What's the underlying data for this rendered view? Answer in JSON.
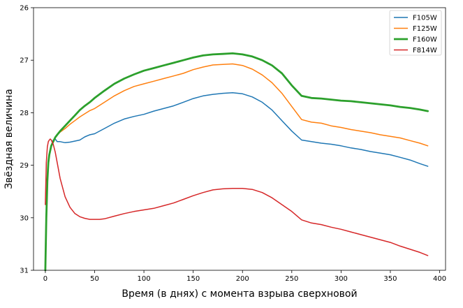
{
  "chart_data": {
    "type": "line",
    "xlabel": "Время (в днях) с момента взрыва сверхновой",
    "ylabel": "Звёздная величина",
    "xlim": [
      -12,
      406
    ],
    "ylim": [
      31,
      26
    ],
    "y_inverted": true,
    "xticks": [
      0,
      50,
      100,
      150,
      200,
      250,
      300,
      350,
      400
    ],
    "yticks": [
      26,
      27,
      28,
      29,
      30,
      31
    ],
    "grid": false,
    "legend_position": "top-right",
    "series": [
      {
        "name": "F105W",
        "color": "#1f77b4",
        "x": [
          0,
          1,
          2,
          3,
          4,
          6,
          8,
          10,
          12,
          15,
          20,
          25,
          30,
          35,
          40,
          45,
          50,
          60,
          70,
          80,
          90,
          100,
          110,
          120,
          130,
          140,
          150,
          160,
          170,
          180,
          190,
          200,
          210,
          220,
          230,
          240,
          250,
          260,
          270,
          280,
          290,
          300,
          310,
          320,
          330,
          340,
          350,
          360,
          370,
          380,
          388
        ],
        "y": [
          31.0,
          30.0,
          29.3,
          28.95,
          28.8,
          28.62,
          28.52,
          28.5,
          28.55,
          28.55,
          28.57,
          28.56,
          28.54,
          28.52,
          28.46,
          28.42,
          28.4,
          28.3,
          28.2,
          28.12,
          28.07,
          28.03,
          27.97,
          27.92,
          27.87,
          27.8,
          27.73,
          27.68,
          27.65,
          27.63,
          27.62,
          27.64,
          27.7,
          27.8,
          27.95,
          28.15,
          28.35,
          28.52,
          28.55,
          28.58,
          28.6,
          28.63,
          28.67,
          28.7,
          28.74,
          28.77,
          28.8,
          28.85,
          28.9,
          28.97,
          29.02
        ]
      },
      {
        "name": "F125W",
        "color": "#ff7f0e",
        "x": [
          0,
          1,
          2,
          3,
          4,
          6,
          8,
          10,
          12,
          15,
          20,
          25,
          30,
          35,
          40,
          45,
          50,
          60,
          70,
          80,
          90,
          100,
          110,
          120,
          130,
          140,
          150,
          160,
          170,
          180,
          190,
          200,
          210,
          220,
          230,
          240,
          250,
          260,
          270,
          280,
          290,
          300,
          310,
          320,
          330,
          340,
          350,
          360,
          370,
          380,
          388
        ],
        "y": [
          31.0,
          30.0,
          29.3,
          28.95,
          28.8,
          28.63,
          28.55,
          28.48,
          28.42,
          28.37,
          28.3,
          28.22,
          28.15,
          28.08,
          28.02,
          27.96,
          27.92,
          27.8,
          27.68,
          27.58,
          27.5,
          27.45,
          27.4,
          27.35,
          27.3,
          27.25,
          27.18,
          27.13,
          27.09,
          27.08,
          27.07,
          27.1,
          27.17,
          27.28,
          27.43,
          27.63,
          27.88,
          28.13,
          28.18,
          28.2,
          28.25,
          28.28,
          28.32,
          28.35,
          28.38,
          28.42,
          28.45,
          28.48,
          28.53,
          28.58,
          28.63
        ]
      },
      {
        "name": "F160W",
        "color": "#2ca02c",
        "x": [
          0,
          1,
          2,
          3,
          4,
          6,
          8,
          10,
          12,
          15,
          20,
          25,
          30,
          35,
          40,
          45,
          50,
          60,
          70,
          80,
          90,
          100,
          110,
          120,
          130,
          140,
          150,
          160,
          170,
          180,
          190,
          200,
          210,
          220,
          230,
          240,
          250,
          260,
          270,
          280,
          290,
          300,
          310,
          320,
          330,
          340,
          350,
          360,
          370,
          380,
          388
        ],
        "y": [
          31.0,
          30.0,
          29.3,
          28.95,
          28.8,
          28.63,
          28.55,
          28.47,
          28.42,
          28.35,
          28.25,
          28.15,
          28.05,
          27.95,
          27.87,
          27.8,
          27.72,
          27.58,
          27.45,
          27.35,
          27.27,
          27.2,
          27.15,
          27.1,
          27.05,
          27.0,
          26.95,
          26.91,
          26.89,
          26.88,
          26.87,
          26.89,
          26.93,
          27.0,
          27.1,
          27.25,
          27.48,
          27.68,
          27.72,
          27.73,
          27.75,
          27.77,
          27.78,
          27.8,
          27.82,
          27.84,
          27.86,
          27.89,
          27.91,
          27.94,
          27.97
        ]
      },
      {
        "name": "F814W",
        "color": "#d62728",
        "x": [
          0,
          1,
          2,
          3,
          4,
          5,
          6,
          8,
          10,
          12,
          15,
          20,
          25,
          30,
          35,
          40,
          45,
          50,
          55,
          60,
          70,
          80,
          90,
          100,
          110,
          120,
          130,
          140,
          150,
          160,
          170,
          180,
          190,
          200,
          210,
          220,
          230,
          240,
          250,
          260,
          270,
          280,
          290,
          300,
          310,
          320,
          330,
          340,
          350,
          360,
          370,
          380,
          388
        ],
        "y": [
          29.75,
          28.95,
          28.65,
          28.55,
          28.52,
          28.5,
          28.52,
          28.6,
          28.75,
          28.95,
          29.25,
          29.6,
          29.8,
          29.92,
          29.98,
          30.01,
          30.03,
          30.03,
          30.03,
          30.02,
          29.97,
          29.92,
          29.88,
          29.85,
          29.82,
          29.77,
          29.72,
          29.65,
          29.58,
          29.52,
          29.47,
          29.45,
          29.44,
          29.44,
          29.46,
          29.52,
          29.62,
          29.75,
          29.88,
          30.04,
          30.1,
          30.13,
          30.18,
          30.22,
          30.27,
          30.32,
          30.37,
          30.42,
          30.47,
          30.54,
          30.6,
          30.66,
          30.72
        ]
      }
    ]
  }
}
